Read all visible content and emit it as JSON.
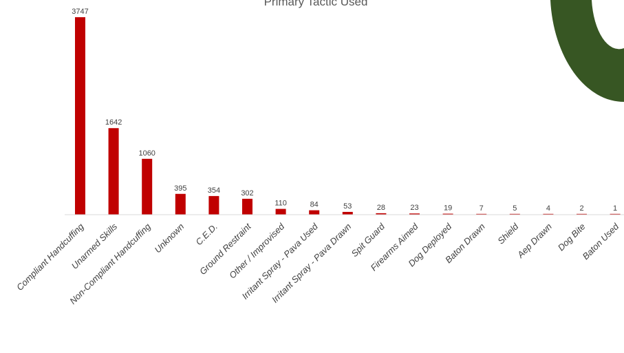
{
  "chart_data": {
    "type": "bar",
    "title": "Primary Tactic Used",
    "xlabel": "",
    "ylabel": "",
    "categories": [
      "Compliant Handcuffing",
      "Unarmed Skills",
      "Non-Compliant Handcuffing",
      "Unknown",
      "C.E.D.",
      "Ground Restraint",
      "Other / Improvised",
      "Irritant Spray - Pava Used",
      "Irritant Spray - Pava Drawn",
      "Spit Guard",
      "Firearms Aimed",
      "Dog Deployed",
      "Baton Drawn",
      "Shield",
      "Aep Drawn",
      "Dog Bite",
      "Baton Used"
    ],
    "values": [
      3747,
      1642,
      1060,
      395,
      354,
      302,
      110,
      84,
      53,
      28,
      23,
      19,
      7,
      5,
      4,
      2,
      1
    ],
    "ylim": [
      0,
      3747
    ],
    "grid": false,
    "legend": "none",
    "bar_color": "#c00000",
    "decoration_color": "#375623"
  }
}
